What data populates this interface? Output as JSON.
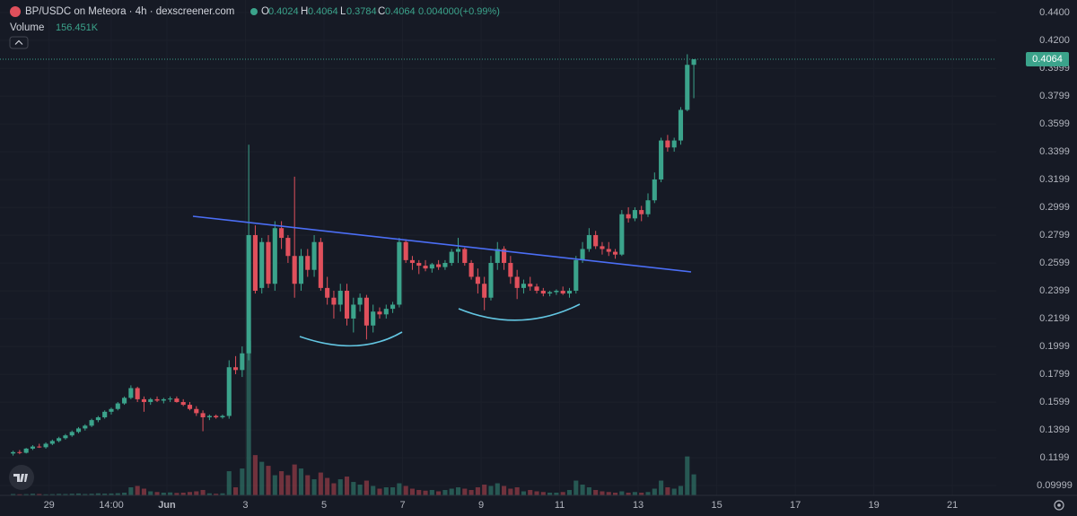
{
  "chart_data": {
    "type": "candlestick",
    "title": "BP/USDC on Meteora · 4h · dexscreener.com",
    "ohlc_labels": [
      "O",
      "H",
      "L",
      "C"
    ],
    "ohlc_values": [
      0.4024,
      0.4064,
      0.3784,
      0.4064
    ],
    "change": "0.004000",
    "change_pct": "(+0.99%)",
    "volume_label": "Volume",
    "volume_value": "156.451K",
    "last_price": 0.4064,
    "up_color": "#3ba38b",
    "down_color": "#e0505c",
    "grid": true,
    "ylim": [
      0.0929,
      0.449
    ],
    "yticks": [
      {
        "value": 0.44,
        "label": "0.4400"
      },
      {
        "value": 0.42,
        "label": "0.4200"
      },
      0.3999,
      0.3799,
      0.3599,
      0.3399,
      0.3199,
      0.2999,
      0.2799,
      0.2599,
      0.2399,
      0.2199,
      0.1999,
      0.1799,
      0.1599,
      0.1399,
      0.1199,
      0.09999
    ],
    "xlim": [
      -1.5,
      150.7
    ],
    "xticks": [
      {
        "value": 6,
        "label": "29"
      },
      {
        "value": 15.5,
        "label": "14:00"
      },
      {
        "value": 24,
        "label": "Jun"
      },
      {
        "value": 36,
        "label": "3"
      },
      {
        "value": 48,
        "label": "5"
      },
      {
        "value": 60,
        "label": "7"
      },
      {
        "value": 72,
        "label": "9"
      },
      {
        "value": 84,
        "label": "11"
      },
      {
        "value": 96,
        "label": "13"
      },
      {
        "value": 108,
        "label": "15"
      },
      {
        "value": 120,
        "label": "17"
      },
      {
        "value": 132,
        "label": "19"
      },
      {
        "value": 144,
        "label": "21"
      }
    ],
    "open": [
      0.123,
      0.124,
      0.1235,
      0.1265,
      0.128,
      0.1275,
      0.13,
      0.132,
      0.134,
      0.136,
      0.1385,
      0.141,
      0.143,
      0.147,
      0.149,
      0.153,
      0.155,
      0.159,
      0.163,
      0.17,
      0.162,
      0.16,
      0.162,
      0.161,
      0.162,
      0.1625,
      0.16,
      0.158,
      0.155,
      0.152,
      0.149,
      0.15,
      0.149,
      0.15,
      0.185,
      0.183,
      0.195,
      0.28,
      0.242,
      0.275,
      0.245,
      0.285,
      0.278,
      0.265,
      0.245,
      0.265,
      0.255,
      0.275,
      0.242,
      0.235,
      0.23,
      0.24,
      0.22,
      0.23,
      0.235,
      0.215,
      0.225,
      0.223,
      0.227,
      0.23,
      0.275,
      0.262,
      0.26,
      0.258,
      0.256,
      0.259,
      0.257,
      0.26,
      0.268,
      0.27,
      0.26,
      0.25,
      0.245,
      0.235,
      0.26,
      0.27,
      0.26,
      0.25,
      0.242,
      0.245,
      0.243,
      0.24,
      0.238,
      0.239,
      0.24,
      0.238,
      0.24,
      0.262,
      0.27,
      0.28,
      0.272,
      0.27,
      0.268,
      0.266,
      0.295,
      0.292,
      0.298,
      0.295,
      0.305,
      0.32,
      0.348,
      0.343,
      0.348,
      0.37,
      0.4024
    ],
    "high": [
      0.125,
      0.1255,
      0.127,
      0.129,
      0.13,
      0.131,
      0.133,
      0.135,
      0.137,
      0.1395,
      0.142,
      0.144,
      0.148,
      0.15,
      0.154,
      0.156,
      0.16,
      0.164,
      0.172,
      0.171,
      0.164,
      0.163,
      0.164,
      0.163,
      0.164,
      0.164,
      0.162,
      0.16,
      0.157,
      0.154,
      0.151,
      0.151,
      0.151,
      0.19,
      0.193,
      0.2,
      0.345,
      0.287,
      0.278,
      0.28,
      0.29,
      0.29,
      0.28,
      0.322,
      0.27,
      0.27,
      0.28,
      0.278,
      0.25,
      0.24,
      0.245,
      0.245,
      0.235,
      0.238,
      0.237,
      0.23,
      0.228,
      0.23,
      0.232,
      0.278,
      0.277,
      0.265,
      0.262,
      0.262,
      0.26,
      0.262,
      0.262,
      0.27,
      0.278,
      0.271,
      0.262,
      0.256,
      0.25,
      0.265,
      0.275,
      0.272,
      0.265,
      0.255,
      0.248,
      0.25,
      0.245,
      0.242,
      0.24,
      0.241,
      0.243,
      0.242,
      0.265,
      0.275,
      0.285,
      0.283,
      0.275,
      0.275,
      0.27,
      0.298,
      0.3,
      0.3,
      0.301,
      0.31,
      0.325,
      0.35,
      0.352,
      0.35,
      0.372,
      0.41,
      0.4064
    ],
    "low": [
      0.1215,
      0.1225,
      0.123,
      0.1255,
      0.127,
      0.1265,
      0.129,
      0.131,
      0.133,
      0.135,
      0.1375,
      0.1395,
      0.142,
      0.1455,
      0.148,
      0.151,
      0.154,
      0.158,
      0.162,
      0.16,
      0.153,
      0.158,
      0.16,
      0.159,
      0.16,
      0.1595,
      0.157,
      0.154,
      0.15,
      0.139,
      0.147,
      0.148,
      0.148,
      0.148,
      0.18,
      0.178,
      0.19,
      0.238,
      0.238,
      0.242,
      0.24,
      0.27,
      0.26,
      0.235,
      0.24,
      0.25,
      0.25,
      0.24,
      0.23,
      0.22,
      0.225,
      0.215,
      0.21,
      0.225,
      0.205,
      0.21,
      0.22,
      0.22,
      0.224,
      0.228,
      0.26,
      0.255,
      0.252,
      0.254,
      0.253,
      0.255,
      0.255,
      0.258,
      0.26,
      0.258,
      0.248,
      0.238,
      0.226,
      0.233,
      0.255,
      0.255,
      0.245,
      0.234,
      0.238,
      0.24,
      0.238,
      0.236,
      0.236,
      0.237,
      0.237,
      0.235,
      0.238,
      0.26,
      0.268,
      0.27,
      0.266,
      0.265,
      0.263,
      0.265,
      0.289,
      0.29,
      0.29,
      0.293,
      0.303,
      0.318,
      0.34,
      0.34,
      0.345,
      0.369,
      0.3784
    ],
    "close": [
      0.124,
      0.1235,
      0.1265,
      0.128,
      0.1275,
      0.13,
      0.132,
      0.134,
      0.136,
      0.1385,
      0.141,
      0.143,
      0.147,
      0.149,
      0.153,
      0.155,
      0.159,
      0.163,
      0.17,
      0.162,
      0.16,
      0.162,
      0.161,
      0.162,
      0.1625,
      0.16,
      0.158,
      0.155,
      0.152,
      0.149,
      0.15,
      0.149,
      0.15,
      0.185,
      0.183,
      0.195,
      0.28,
      0.24,
      0.275,
      0.245,
      0.285,
      0.278,
      0.265,
      0.245,
      0.265,
      0.255,
      0.275,
      0.242,
      0.235,
      0.23,
      0.24,
      0.22,
      0.23,
      0.235,
      0.215,
      0.225,
      0.223,
      0.227,
      0.23,
      0.275,
      0.262,
      0.26,
      0.258,
      0.256,
      0.259,
      0.257,
      0.26,
      0.268,
      0.27,
      0.26,
      0.25,
      0.245,
      0.235,
      0.26,
      0.27,
      0.26,
      0.25,
      0.242,
      0.245,
      0.243,
      0.24,
      0.238,
      0.239,
      0.24,
      0.238,
      0.24,
      0.262,
      0.27,
      0.28,
      0.272,
      0.27,
      0.268,
      0.266,
      0.295,
      0.292,
      0.298,
      0.295,
      0.305,
      0.32,
      0.348,
      0.343,
      0.348,
      0.37,
      0.4024,
      0.4064
    ],
    "volume": [
      10000,
      8000,
      9000,
      12000,
      10000,
      8000,
      9000,
      11000,
      10000,
      12000,
      14000,
      10000,
      12000,
      15000,
      13000,
      14000,
      16000,
      20000,
      60000,
      70000,
      50000,
      30000,
      25000,
      20000,
      22000,
      18000,
      20000,
      25000,
      30000,
      40000,
      15000,
      12000,
      15000,
      180000,
      60000,
      200000,
      1150000,
      300000,
      250000,
      220000,
      150000,
      180000,
      150000,
      230000,
      200000,
      150000,
      120000,
      170000,
      130000,
      90000,
      120000,
      140000,
      100000,
      80000,
      110000,
      70000,
      50000,
      60000,
      60000,
      90000,
      70000,
      50000,
      40000,
      35000,
      40000,
      30000,
      40000,
      50000,
      60000,
      50000,
      40000,
      60000,
      80000,
      70000,
      90000,
      70000,
      50000,
      60000,
      30000,
      40000,
      30000,
      25000,
      20000,
      20000,
      25000,
      40000,
      110000,
      80000,
      60000,
      40000,
      30000,
      25000,
      20000,
      30000,
      20000,
      25000,
      20000,
      25000,
      50000,
      110000,
      60000,
      50000,
      70000,
      290000,
      156451
    ]
  }
}
